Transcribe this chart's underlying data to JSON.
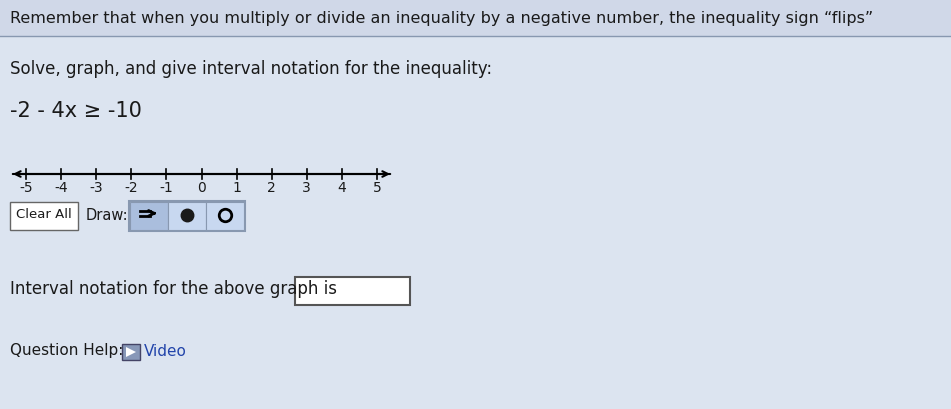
{
  "title_text": "Remember that when you multiply or divide an inequality by a negative number, the inequality sign “flips”",
  "title_bg": "#d0d8e8",
  "bg_color": "#dce4f0",
  "solve_label": "Solve, graph, and give interval notation for the inequality:",
  "inequality": "-2 - 4x ≥ -10",
  "number_line_ticks": [
    -5,
    -4,
    -3,
    -2,
    -1,
    0,
    1,
    2,
    3,
    4,
    5
  ],
  "clear_all_label": "Clear All",
  "draw_label": "Draw:",
  "interval_label": "Interval notation for the above graph is",
  "question_help_label": "Question Help:",
  "video_label": "Video",
  "font_color": "#1a1a1a",
  "figsize": [
    9.51,
    4.09
  ],
  "dpi": 100
}
